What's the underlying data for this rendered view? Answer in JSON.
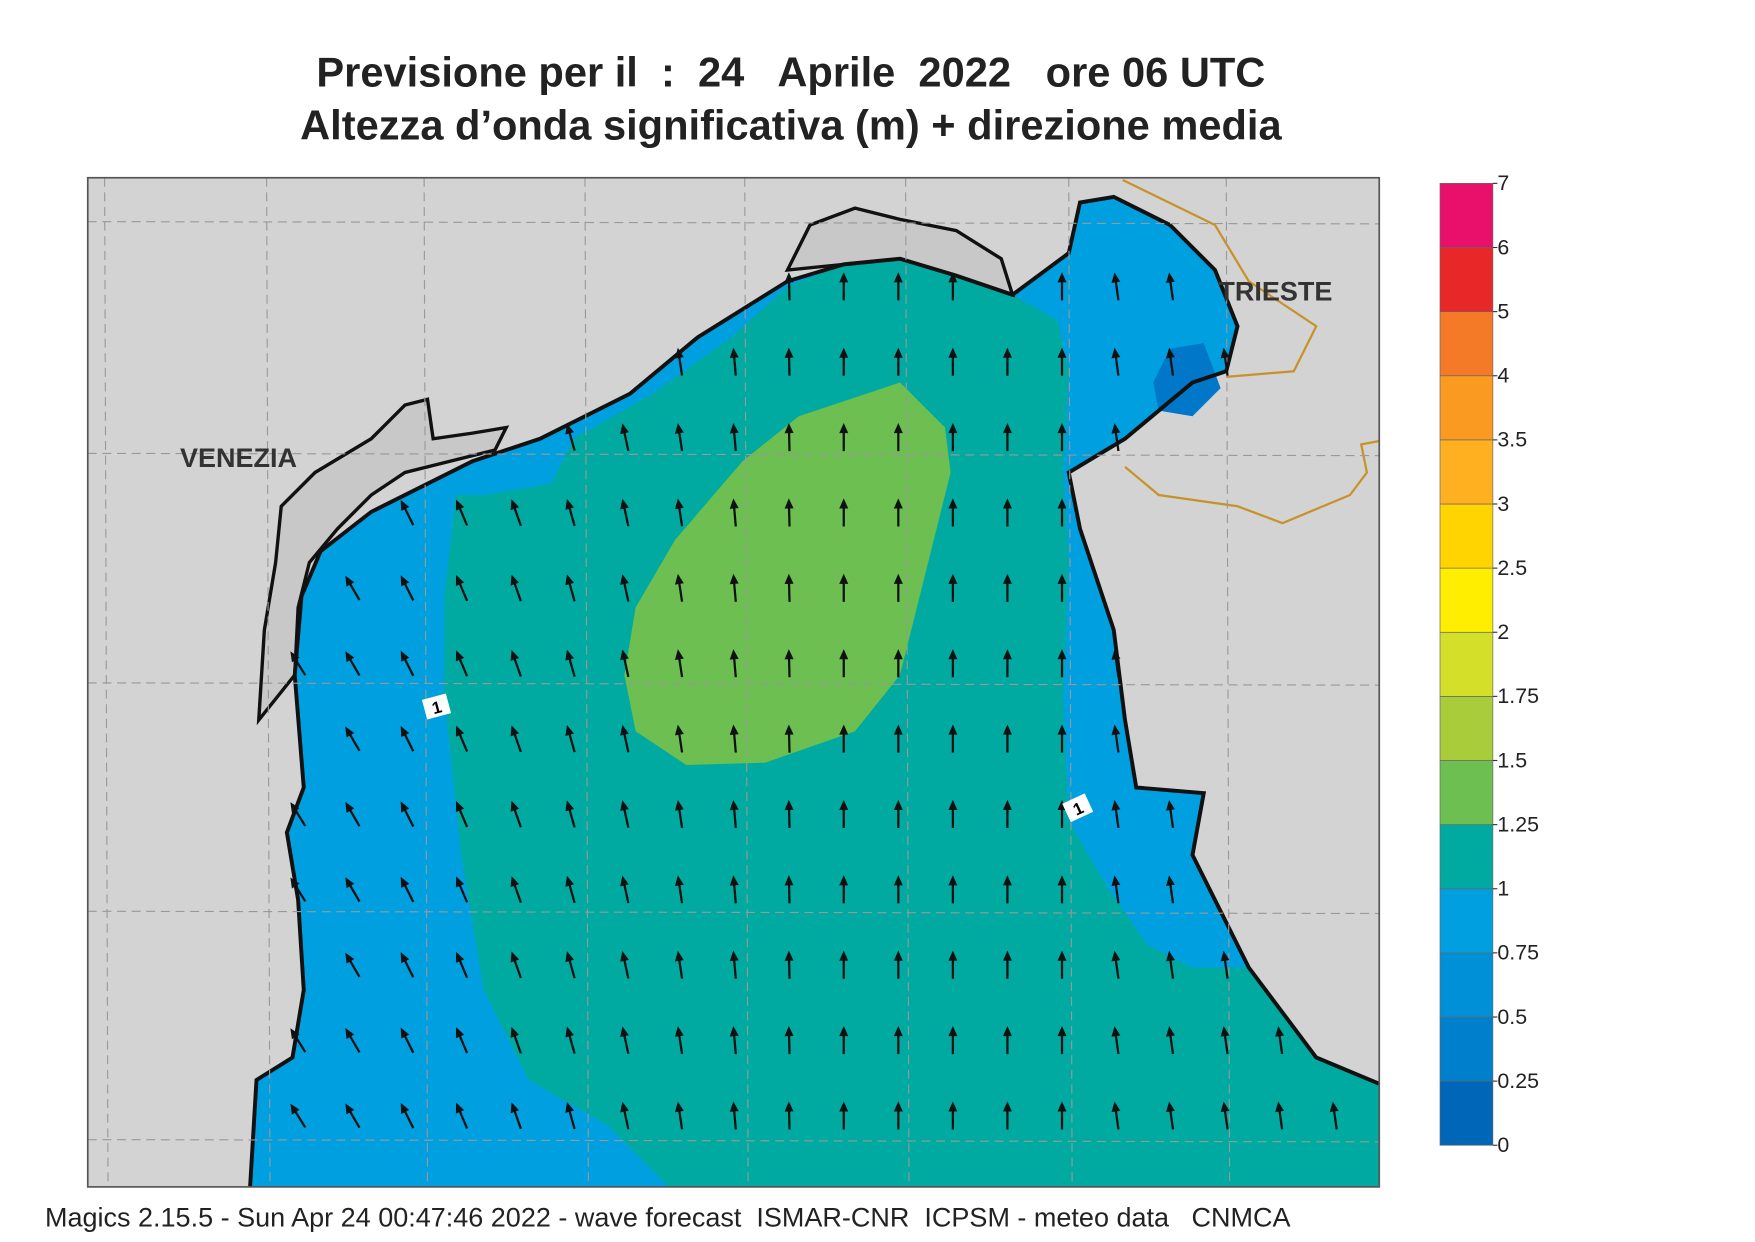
{
  "title": {
    "line1": "Previsione per il  :  24   Aprile  2022   ore 06 UTC",
    "line2": "Altezza d’onda significativa (m) + direzione media"
  },
  "places": [
    "VENEZIA",
    "TRIESTE"
  ],
  "contour_labels": [
    "1",
    "1"
  ],
  "legend": {
    "ticks": [
      0,
      0.25,
      0.5,
      0.75,
      1,
      1.25,
      1.5,
      1.75,
      2,
      2.5,
      3,
      3.5,
      4,
      5,
      6,
      7
    ],
    "colors": [
      "#0066b8",
      "#0080cc",
      "#0090d8",
      "#00a0e0",
      "#00aaa0",
      "#6cbf50",
      "#a8cc3a",
      "#d4df2a",
      "#ffee00",
      "#ffd400",
      "#ffb020",
      "#fb9a20",
      "#f57a28",
      "#e82828",
      "#e8106a"
    ]
  },
  "footer": "Magics 2.15.5 - Sun Apr 24 00:47:46 2022 - wave forecast  ISMAR-CNR  ICPSM - meteo data   CNMCA"
}
